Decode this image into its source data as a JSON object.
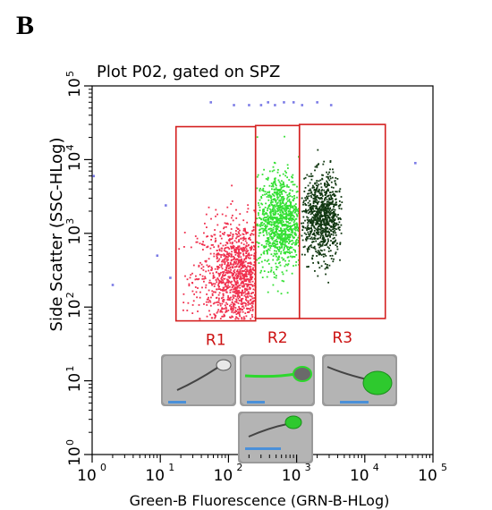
{
  "panel_label": "B",
  "colors": {
    "gate": "#d42020",
    "r1_points": "#f0304e",
    "r2_points": "#33e033",
    "r3_points": "#123812",
    "outlier_points": "#7b7be6",
    "scale_bar": "#4a90d9",
    "frame": "#000000"
  },
  "chart_data": {
    "type": "scatter",
    "title": "Plot P02, gated on SPZ",
    "xlabel": "Green-B Fluorescence (GRN-B-HLog)",
    "ylabel": "Side Scatter (SSC-HLog)",
    "x_scale": "log",
    "y_scale": "log",
    "xlim": [
      1,
      100000
    ],
    "ylim": [
      1,
      100000
    ],
    "x_ticks": [
      {
        "value": 1,
        "base": "10",
        "exp": "0"
      },
      {
        "value": 10,
        "base": "10",
        "exp": "1"
      },
      {
        "value": 100,
        "base": "10",
        "exp": "2"
      },
      {
        "value": 1000,
        "base": "10",
        "exp": "3"
      },
      {
        "value": 10000,
        "base": "10",
        "exp": "4"
      },
      {
        "value": 100000,
        "base": "10",
        "exp": "5"
      }
    ],
    "y_ticks": [
      {
        "value": 1,
        "base": "10",
        "exp": "0"
      },
      {
        "value": 10,
        "base": "10",
        "exp": "1"
      },
      {
        "value": 100,
        "base": "10",
        "exp": "2"
      },
      {
        "value": 1000,
        "base": "10",
        "exp": "3"
      },
      {
        "value": 10000,
        "base": "10",
        "exp": "4"
      },
      {
        "value": 100000,
        "base": "10",
        "exp": "5"
      }
    ],
    "grid": false,
    "gates": [
      {
        "name": "R1",
        "x_range": [
          17,
          250
        ],
        "y_range": [
          65,
          28000
        ]
      },
      {
        "name": "R2",
        "x_range": [
          250,
          1100
        ],
        "y_range": [
          70,
          29000
        ]
      },
      {
        "name": "R3",
        "x_range": [
          1100,
          20000
        ],
        "y_range": [
          70,
          30000
        ]
      }
    ],
    "series": [
      {
        "gate": "R1",
        "n": 1100,
        "center": [
          150,
          260
        ],
        "spread_log10": [
          0.32,
          0.38
        ],
        "x_range": [
          18,
          245
        ],
        "y_range": [
          70,
          27000
        ]
      },
      {
        "gate": "R2",
        "n": 1000,
        "center": [
          560,
          1500
        ],
        "spread_log10": [
          0.17,
          0.32
        ],
        "x_range": [
          255,
          1080
        ],
        "y_range": [
          100,
          28000
        ]
      },
      {
        "gate": "R3",
        "n": 900,
        "center": [
          2300,
          1650
        ],
        "spread_log10": [
          0.15,
          0.28
        ],
        "x_range": [
          1150,
          4500
        ],
        "y_range": [
          110,
          29000
        ]
      }
    ],
    "outliers": [
      {
        "x": 55,
        "y": 60000
      },
      {
        "x": 120,
        "y": 55000
      },
      {
        "x": 200,
        "y": 55000
      },
      {
        "x": 300,
        "y": 55000
      },
      {
        "x": 380,
        "y": 60000
      },
      {
        "x": 480,
        "y": 55000
      },
      {
        "x": 650,
        "y": 60000
      },
      {
        "x": 900,
        "y": 60000
      },
      {
        "x": 1200,
        "y": 55000
      },
      {
        "x": 2000,
        "y": 60000
      },
      {
        "x": 3200,
        "y": 55000
      },
      {
        "x": 55000,
        "y": 9000
      },
      {
        "x": 2,
        "y": 200
      },
      {
        "x": 9,
        "y": 500
      },
      {
        "x": 14,
        "y": 250
      },
      {
        "x": 1.05,
        "y": 6000
      },
      {
        "x": 12,
        "y": 2400
      }
    ]
  },
  "micrographs": [
    {
      "label": "R1",
      "fluorescence": "none"
    },
    {
      "label": "R2",
      "fluorescence": "outline"
    },
    {
      "label": "R3",
      "fluorescence": "body"
    },
    {
      "label": "R2",
      "fluorescence": "partial"
    }
  ]
}
